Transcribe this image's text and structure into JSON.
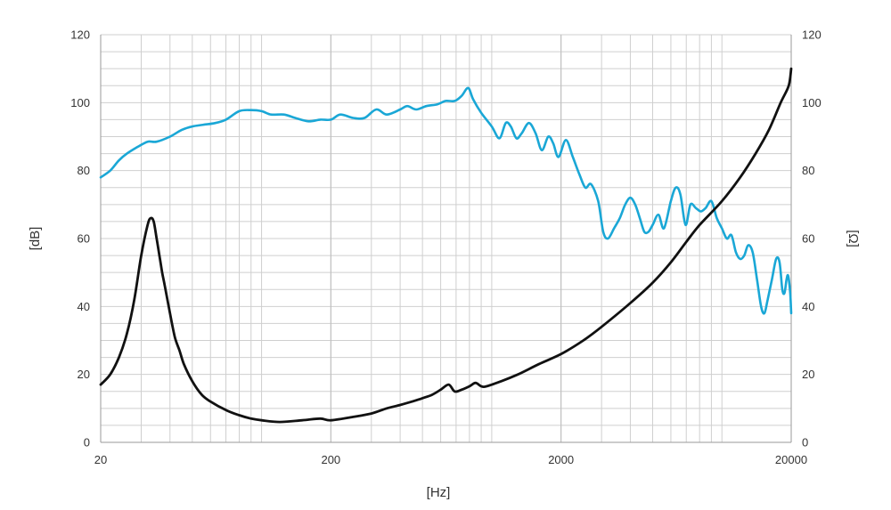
{
  "chart_data": {
    "type": "line",
    "title": "",
    "xlabel": "[Hz]",
    "ylabel_left": "[dB]",
    "ylabel_right": "[Ω]",
    "x_scale": "log",
    "xlim": [
      20,
      20000
    ],
    "ylim_left": [
      0,
      120
    ],
    "ylim_right": [
      0,
      120
    ],
    "x_ticks": [
      20,
      200,
      2000,
      20000
    ],
    "y_ticks_left": [
      0,
      20,
      40,
      60,
      80,
      100,
      120
    ],
    "y_ticks_right": [
      0,
      20,
      40,
      60,
      80,
      100,
      120
    ],
    "grid": true,
    "legend": "none",
    "series": [
      {
        "axis": "left",
        "color": "#1aa7d6",
        "points": [
          [
            20,
            78
          ],
          [
            22,
            80
          ],
          [
            24,
            83
          ],
          [
            26,
            85
          ],
          [
            29,
            87
          ],
          [
            32,
            88.5
          ],
          [
            35,
            88.5
          ],
          [
            40,
            90
          ],
          [
            45,
            92
          ],
          [
            50,
            93
          ],
          [
            56,
            93.5
          ],
          [
            63,
            94
          ],
          [
            70,
            95
          ],
          [
            80,
            97.5
          ],
          [
            90,
            97.8
          ],
          [
            100,
            97.5
          ],
          [
            110,
            96.5
          ],
          [
            125,
            96.5
          ],
          [
            140,
            95.5
          ],
          [
            160,
            94.5
          ],
          [
            180,
            95
          ],
          [
            200,
            95
          ],
          [
            220,
            96.5
          ],
          [
            250,
            95.5
          ],
          [
            280,
            95.5
          ],
          [
            315,
            98
          ],
          [
            350,
            96.5
          ],
          [
            400,
            98
          ],
          [
            430,
            99
          ],
          [
            470,
            98
          ],
          [
            520,
            99
          ],
          [
            580,
            99.5
          ],
          [
            630,
            100.5
          ],
          [
            690,
            100.5
          ],
          [
            740,
            102
          ],
          [
            790,
            104.3
          ],
          [
            830,
            101
          ],
          [
            900,
            97
          ],
          [
            1000,
            93
          ],
          [
            1080,
            89.5
          ],
          [
            1150,
            94
          ],
          [
            1210,
            93
          ],
          [
            1280,
            89.5
          ],
          [
            1350,
            91
          ],
          [
            1450,
            94
          ],
          [
            1550,
            91
          ],
          [
            1650,
            86
          ],
          [
            1760,
            90
          ],
          [
            1850,
            88
          ],
          [
            1950,
            84
          ],
          [
            2100,
            89
          ],
          [
            2250,
            84
          ],
          [
            2400,
            79
          ],
          [
            2550,
            75
          ],
          [
            2700,
            76
          ],
          [
            2900,
            71
          ],
          [
            3050,
            62
          ],
          [
            3200,
            60
          ],
          [
            3400,
            63
          ],
          [
            3600,
            66
          ],
          [
            3800,
            70
          ],
          [
            4000,
            72
          ],
          [
            4200,
            70
          ],
          [
            4400,
            66
          ],
          [
            4600,
            62
          ],
          [
            4800,
            62
          ],
          [
            5000,
            64
          ],
          [
            5300,
            67
          ],
          [
            5600,
            63
          ],
          [
            6000,
            71
          ],
          [
            6300,
            75
          ],
          [
            6600,
            73
          ],
          [
            6950,
            64
          ],
          [
            7300,
            70
          ],
          [
            7700,
            69
          ],
          [
            8100,
            68
          ],
          [
            8500,
            69
          ],
          [
            9000,
            71
          ],
          [
            9500,
            66
          ],
          [
            10000,
            63
          ],
          [
            10500,
            60
          ],
          [
            11000,
            61
          ],
          [
            11500,
            56
          ],
          [
            12000,
            54
          ],
          [
            12500,
            55
          ],
          [
            13000,
            58
          ],
          [
            13600,
            56
          ],
          [
            14200,
            48
          ],
          [
            14800,
            40
          ],
          [
            15300,
            38
          ],
          [
            15800,
            42
          ],
          [
            16500,
            48
          ],
          [
            17200,
            54
          ],
          [
            17800,
            53
          ],
          [
            18300,
            45
          ],
          [
            18700,
            44
          ],
          [
            19100,
            48
          ],
          [
            19400,
            49
          ],
          [
            19800,
            44
          ],
          [
            20000,
            38
          ]
        ]
      },
      {
        "axis": "right",
        "color": "#111111",
        "points": [
          [
            20,
            17
          ],
          [
            22,
            20
          ],
          [
            24,
            25
          ],
          [
            26,
            32
          ],
          [
            28,
            42
          ],
          [
            30,
            55
          ],
          [
            32,
            64
          ],
          [
            33,
            66
          ],
          [
            34,
            65
          ],
          [
            35,
            60
          ],
          [
            36,
            55
          ],
          [
            37,
            50
          ],
          [
            38,
            46
          ],
          [
            40,
            38
          ],
          [
            42,
            31
          ],
          [
            44,
            27
          ],
          [
            46,
            23
          ],
          [
            50,
            18
          ],
          [
            55,
            14
          ],
          [
            60,
            12
          ],
          [
            70,
            9.5
          ],
          [
            80,
            8
          ],
          [
            90,
            7
          ],
          [
            100,
            6.5
          ],
          [
            120,
            6
          ],
          [
            150,
            6.5
          ],
          [
            180,
            7
          ],
          [
            200,
            6.5
          ],
          [
            250,
            7.5
          ],
          [
            300,
            8.5
          ],
          [
            350,
            10
          ],
          [
            400,
            11
          ],
          [
            450,
            12
          ],
          [
            500,
            13
          ],
          [
            550,
            14
          ],
          [
            600,
            15.5
          ],
          [
            650,
            17
          ],
          [
            690,
            15
          ],
          [
            740,
            15.5
          ],
          [
            800,
            16.5
          ],
          [
            850,
            17.5
          ],
          [
            900,
            16.5
          ],
          [
            950,
            16.5
          ],
          [
            1100,
            18
          ],
          [
            1300,
            20
          ],
          [
            1600,
            23
          ],
          [
            2000,
            26
          ],
          [
            2500,
            30
          ],
          [
            3000,
            34
          ],
          [
            4000,
            41
          ],
          [
            5000,
            47
          ],
          [
            6000,
            53
          ],
          [
            7000,
            59
          ],
          [
            8000,
            64
          ],
          [
            10000,
            71
          ],
          [
            12000,
            78
          ],
          [
            14000,
            85
          ],
          [
            16000,
            92
          ],
          [
            18000,
            100
          ],
          [
            19500,
            105
          ],
          [
            20000,
            110
          ]
        ]
      }
    ]
  }
}
